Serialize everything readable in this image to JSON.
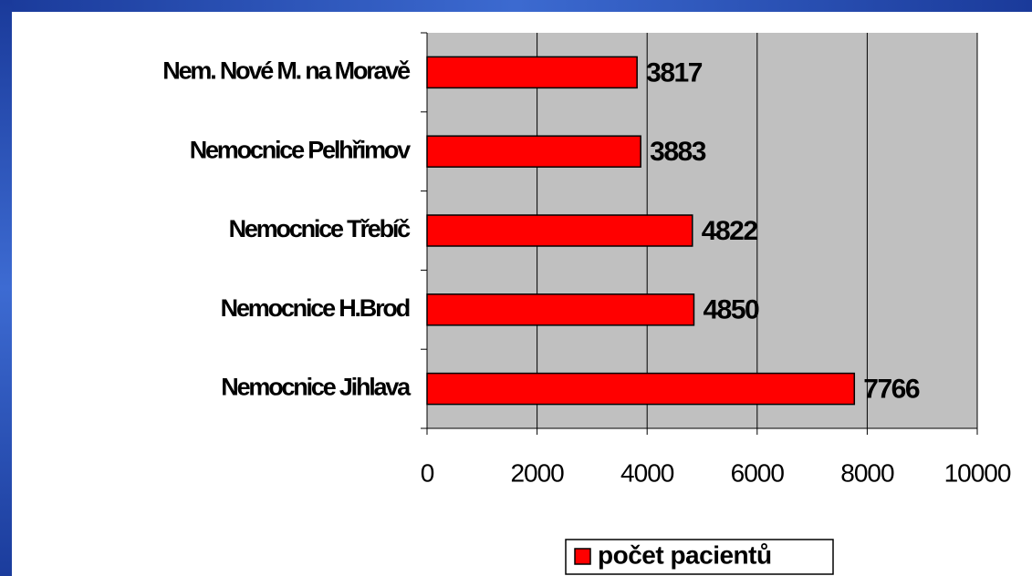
{
  "chart_data": {
    "type": "bar",
    "orientation": "horizontal",
    "categories": [
      "Nem. Nové M. na Moravě",
      "Nemocnice Pelhřimov",
      "Nemocnice Třebíč",
      "Nemocnice H.Brod",
      "Nemocnice Jihlava"
    ],
    "series": [
      {
        "name": "počet pacientů",
        "color": "#ff0000",
        "values": [
          3817,
          3883,
          4822,
          4850,
          7766
        ]
      }
    ],
    "xlim": [
      0,
      10000
    ],
    "xticks": [
      0,
      2000,
      4000,
      6000,
      8000,
      10000
    ],
    "grid": true,
    "legend": "bottom"
  }
}
